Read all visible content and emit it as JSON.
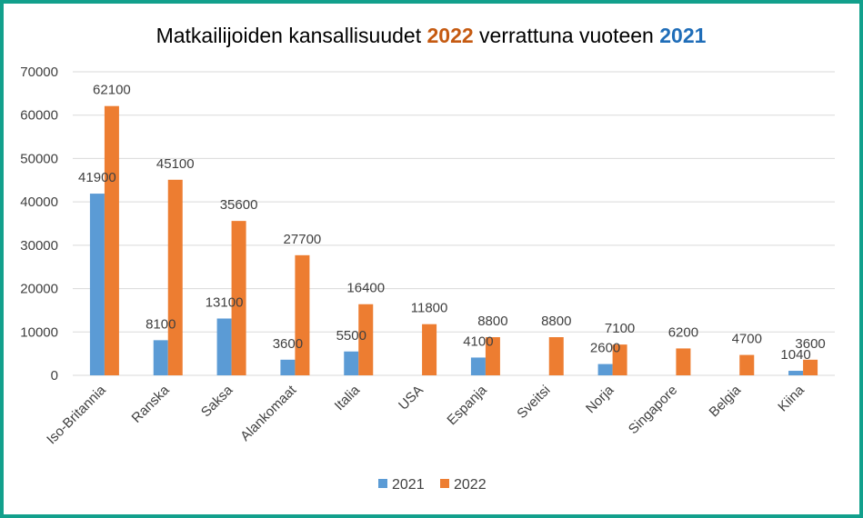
{
  "chart_data": {
    "type": "bar",
    "title": {
      "prefix": "Matkailijoiden kansallisuudet ",
      "year_a": "2022",
      "middle": " verrattuna vuoteen ",
      "year_b": "2021"
    },
    "categories": [
      "Iso-Britannia",
      "Ranska",
      "Saksa",
      "Alankomaat",
      "Italia",
      "USA",
      "Espanja",
      "Sveitsi",
      "Norja",
      "Singapore",
      "Belgia",
      "Kiina"
    ],
    "series": [
      {
        "name": "2021",
        "color": "#5b9bd5",
        "values": [
          41900,
          8100,
          13100,
          3600,
          5500,
          null,
          4100,
          null,
          2600,
          null,
          null,
          1040
        ]
      },
      {
        "name": "2022",
        "color": "#ed7d31",
        "values": [
          62100,
          45100,
          35600,
          27700,
          16400,
          11800,
          8800,
          8800,
          7100,
          6200,
          4700,
          3600
        ]
      }
    ],
    "ylim": [
      0,
      70000
    ],
    "yticks": [
      "0",
      "10000",
      "20000",
      "30000",
      "40000",
      "50000",
      "60000",
      "70000"
    ],
    "grid": true,
    "legend": "bottom",
    "colors": {
      "title_2022": "#c55a11",
      "title_2021": "#1f6db8",
      "grid": "#d9d9d9",
      "frame": "#12a08c"
    }
  }
}
